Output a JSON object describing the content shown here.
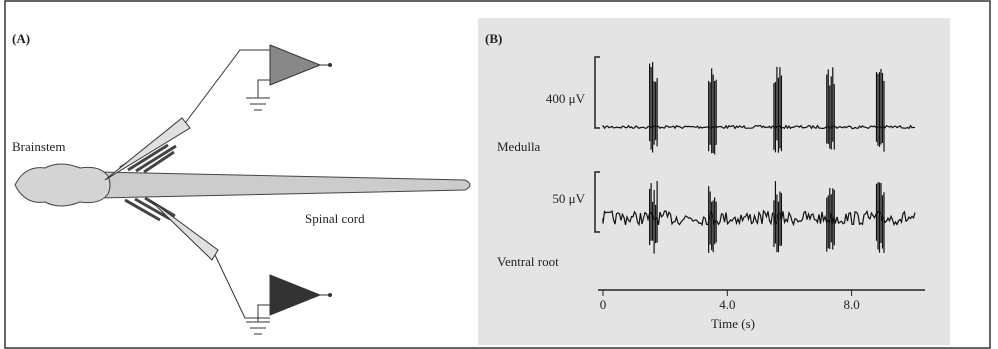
{
  "panel_a": {
    "label": "(A)",
    "brainstem": "Brainstem",
    "spinal_cord": "Spinal cord"
  },
  "panel_b": {
    "label": "(B)",
    "medulla": {
      "scale": "400 μV",
      "name": "Medulla"
    },
    "ventral_root": {
      "scale": "50 μV",
      "name": "Ventral root"
    },
    "burst_times": [
      1.5,
      3.4,
      5.5,
      7.2,
      8.8
    ],
    "xlim": [
      0,
      10.2
    ],
    "xticks": [
      {
        "value": 0,
        "label": "0"
      },
      {
        "value": 4,
        "label": "4.0"
      },
      {
        "value": 8,
        "label": "8.0"
      }
    ],
    "xlabel": "Time (s)"
  }
}
